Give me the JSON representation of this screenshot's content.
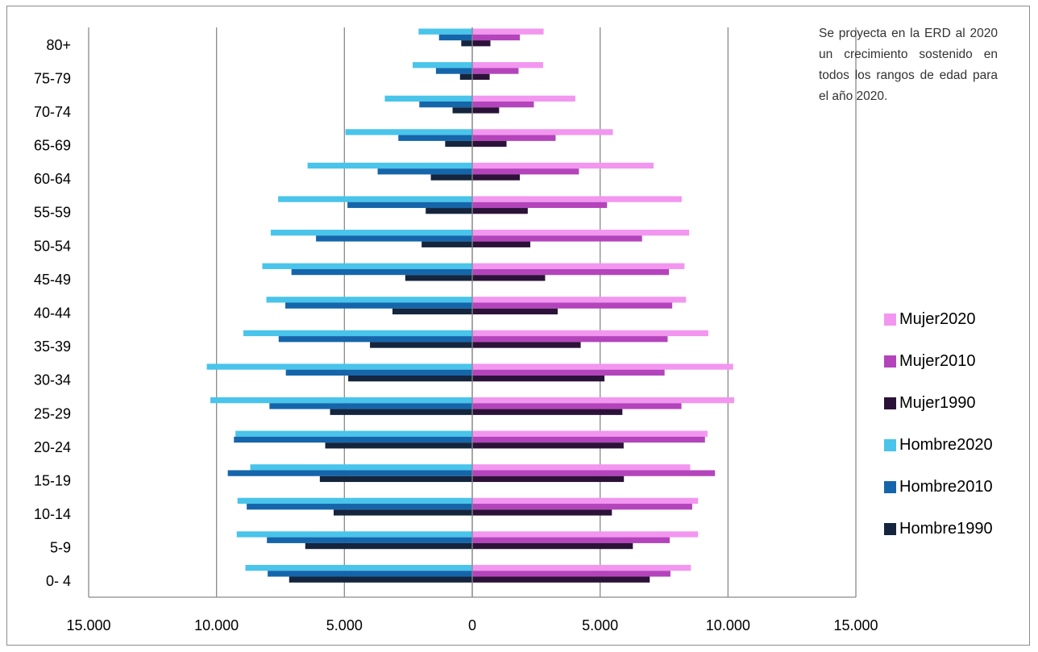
{
  "note": "Se proyecta en la ERD al 2020 un crecimiento sostenido en todos los rangos de edad para el año 2020.",
  "chart_data": {
    "type": "bar",
    "orientation": "horizontal",
    "subtype": "population-pyramid",
    "categories": [
      "0- 4",
      "5-9",
      "10-14",
      "15-19",
      "20-24",
      "25-29",
      "30-34",
      "35-39",
      "40-44",
      "45-49",
      "50-54",
      "55-59",
      "60-64",
      "65-69",
      "70-74",
      "75-79",
      "80+"
    ],
    "xlim": [
      -15000,
      15000
    ],
    "x_ticks": [
      -15000,
      -10000,
      -5000,
      0,
      5000,
      10000,
      15000
    ],
    "x_tick_labels": [
      "15.000",
      "10.000",
      "5.000",
      "0",
      "5.000",
      "10.000",
      "15.000"
    ],
    "grid": "vertical",
    "legend_position": "right",
    "series": [
      {
        "name": "Mujer2020",
        "color": "#f296f0",
        "values": [
          8550,
          8830,
          8830,
          8520,
          9200,
          10240,
          10200,
          9230,
          8360,
          8300,
          8480,
          8190,
          7090,
          5500,
          4030,
          2770,
          2790
        ]
      },
      {
        "name": "Mujer2010",
        "color": "#b444bb",
        "values": [
          7750,
          7720,
          8600,
          9490,
          9100,
          8180,
          7520,
          7640,
          7820,
          7690,
          6640,
          5270,
          4170,
          3260,
          2410,
          1810,
          1860
        ]
      },
      {
        "name": "Mujer1990",
        "color": "#2c1238",
        "values": [
          6940,
          6280,
          5460,
          5930,
          5920,
          5870,
          5170,
          4240,
          3340,
          2850,
          2270,
          2170,
          1860,
          1340,
          1050,
          680,
          710
        ]
      },
      {
        "name": "Hombre2020",
        "color": "#49c4ea",
        "values": [
          -8870,
          -9210,
          -9180,
          -8680,
          -9260,
          -10240,
          -10380,
          -8950,
          -8050,
          -8210,
          -7880,
          -7590,
          -6440,
          -4960,
          -3420,
          -2330,
          -2100
        ]
      },
      {
        "name": "Hombre2010",
        "color": "#1565ab",
        "values": [
          -8000,
          -8030,
          -8820,
          -9560,
          -9320,
          -7930,
          -7290,
          -7570,
          -7310,
          -7070,
          -6110,
          -4880,
          -3700,
          -2890,
          -2070,
          -1420,
          -1300
        ]
      },
      {
        "name": "Hombre1990",
        "color": "#14253d",
        "values": [
          -7160,
          -6530,
          -5420,
          -5960,
          -5750,
          -5560,
          -4850,
          -4000,
          -3120,
          -2620,
          -1980,
          -1820,
          -1620,
          -1060,
          -770,
          -480,
          -430
        ]
      }
    ],
    "legend_order": [
      "Mujer2020",
      "Mujer2010",
      "Mujer1990",
      "Hombre2020",
      "Hombre2010",
      "Hombre1990"
    ]
  }
}
